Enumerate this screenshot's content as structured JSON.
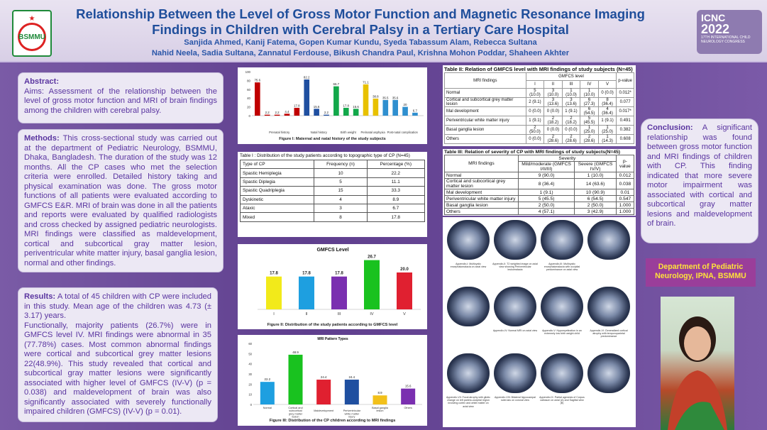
{
  "header": {
    "title_line1": "Relationship Between the Level of Gross Motor Function and Magnetic Resonance Imaging",
    "title_line2": "Findings in Children with Cerebral Palsy in a Tertiary Care Hospital",
    "authors_line1": "Sanjida Ahmed, Kanij Fatema, Gopen Kumar Kundu, Syeda Tabassum Alam, Rebecca Sultana",
    "authors_line2": "Nahid Neela, Sadia Sultana, Zannatul Ferdouse, Bikush Chandra Paul, Krishna Mohon Poddar, Shaheen Akhter",
    "logo_text": "BSMMU",
    "conf_name": "ICNC",
    "conf_year": "2022",
    "conf_sub": "17TH INTERNATIONAL CHILD NEUROLOGY CONGRESS"
  },
  "abstract": {
    "heading": "Abstract:",
    "text": "Aims: Assessment of the relationship between the level of gross motor function and MRI of brain findings among the children with cerebral palsy."
  },
  "methods": {
    "heading": "Methods:",
    "text": "This cross-sectional study was carried out at the department of Pediatric Neurology, BSMMU, Dhaka, Bangladesh. The duration of the study was 12 months. All the CP cases who met the selection criteria were enrolled. Detailed history taking and physical examination was done. The gross motor functions of all patients were evaluated according to GMFCS E&R. MRI of brain was done in all the patients and reports were evaluated by qualified radiologists and cross checked by assigned pediatric neurologists. MRI findings were classified as maldevelopment, cortical and subcortical gray matter lesion, periventricular white matter injury, basal ganglia lesion, normal and other findings."
  },
  "results": {
    "heading": "Results:",
    "p1": "A total of 45 children with CP were included in this study. Mean age of the children was 4.73 (± 3.17) years.",
    "p2": "Functionally, majority patients (26.7%) were in GMFCS level IV. MRI findings were abnormal in 35 (77.78%) cases. Most common abnormal findings were cortical and subcortical grey matter lesions 22(48.9%). This study revealed that cortical and subcortical gray matter lesions were significantly associated with higher level of GMFCS (IV-V) (p = 0.038) and maldevelopment of brain was also significantly associated with severely functionally impaired children (GMFCS) (IV-V) (p = 0.01)."
  },
  "conclusion": {
    "heading": "Conclusion:",
    "text": "A significant relationship was found between gross motor function and MRI findings of children with CP. This finding indicated that more severe motor impairment was associated with cortical and subcortical gray matter lesions and maldevelopment of brain."
  },
  "department": "Department of Pediatric Neurology, IPNA, BSMMU",
  "colors": {
    "bg": "#6d4d95",
    "text": "#5a35a0",
    "title": "#1f4e9b",
    "dept_bg": "#9a3e9a",
    "dept_fg": "#ffe23a"
  },
  "chart_data": [
    {
      "type": "bar",
      "caption": "Figure I: Maternal and natal history of the study subjects",
      "ylim": [
        0,
        100
      ],
      "yticks": [
        "100",
        "80",
        "60",
        "40",
        "20",
        "0"
      ],
      "values": [
        75.6,
        2.2,
        2.2,
        4.4,
        17.8,
        82.2,
        15.6,
        2.2,
        66.7,
        17.8,
        15.6,
        71.1,
        38.8,
        35.5,
        35.6,
        20,
        6.7
      ],
      "colors": [
        "#c00000",
        "#c00000",
        "#c00000",
        "#c00000",
        "#c00000",
        "#1f4fa0",
        "#1f4fa0",
        "#1f4fa0",
        "#12a84a",
        "#12a84a",
        "#12a84a",
        "#e8c100",
        "#e8c100",
        "#2f8fcf",
        "#2f8fcf",
        "#2f8fcf",
        "#2f8fcf"
      ],
      "value_labels": [
        "75.6",
        "2.2",
        "2.2",
        "4.4",
        "17.8",
        "82.2",
        "15.6",
        "2.2",
        "66.7",
        "17.8",
        "15.6",
        "71.1",
        "38.8",
        "35.5",
        "35.6",
        "20",
        "6.7"
      ],
      "groups": [
        "Prenatal history",
        "Natal history",
        "Birth weight",
        "Perinatal asphyxia",
        "Post-natal complication"
      ]
    },
    {
      "type": "bar",
      "title": "GMFCS Level",
      "caption": "Figure II: Distribution of the study patients according to GMFCS level",
      "categories": [
        "I",
        "II",
        "III",
        "IV",
        "V"
      ],
      "values": [
        17.8,
        17.8,
        17.8,
        26.7,
        20.0
      ],
      "value_labels": [
        "17.8",
        "17.8",
        "17.8",
        "26.7",
        "20.0"
      ],
      "colors": [
        "#f2ea1a",
        "#1e9fe0",
        "#7a2fb0",
        "#19c21f",
        "#e02030"
      ],
      "ylim": [
        0,
        30
      ]
    },
    {
      "type": "bar",
      "title": "MRI Pattern Types",
      "caption": "Figure III: Distribution of the CP children according to MRI findings",
      "categories": [
        "Normal",
        "Cortical and subcortical grey matter lesion",
        "Maldevelopment",
        "Periventricular white matter injury",
        "Basal ganglia lesion",
        "Others"
      ],
      "values": [
        22.2,
        48.9,
        24.4,
        24.4,
        8.9,
        15.6
      ],
      "value_labels": [
        "22.2",
        "48.9",
        "24.4",
        "24.4",
        "8.9",
        "15.6"
      ],
      "colors": [
        "#1e9fe0",
        "#19c21f",
        "#e02030",
        "#1f4fa0",
        "#f2c01a",
        "#7a2fb0"
      ],
      "yticks": [
        "60",
        "50",
        "40",
        "30",
        "20",
        "10",
        "0"
      ],
      "ylim": [
        0,
        60
      ]
    }
  ],
  "table1": {
    "title": "Table I : Distribution of the study patients according to topographic type of CP (N=45)",
    "headers": [
      "Type of CP",
      "Frequency (n)",
      "Percentage (%)"
    ],
    "rows": [
      [
        "Spastic Hemiplegia",
        "10",
        "22.2"
      ],
      [
        "Spastic Diplegia",
        "5",
        "11.1"
      ],
      [
        "Spastic Quadriplegia",
        "15",
        "33.3"
      ],
      [
        "Dyskinetic",
        "4",
        "8.9"
      ],
      [
        "Ataxic",
        "3",
        "6.7"
      ],
      [
        "Mixed",
        "8",
        "17.8"
      ]
    ]
  },
  "table2": {
    "title": "Table II: Relation of GMFCS level with MRI findings of study subjects (N=45)",
    "h1": "MRI findings",
    "h2": "GMFCS level",
    "h3": "p-value",
    "levels": [
      "I",
      "II",
      "III",
      "IV",
      "V"
    ],
    "rows": [
      [
        "Normal",
        "5 (10.0)",
        "3 (10.0)",
        "1 (10.0)",
        "1 (10.0)",
        "0 (0.0)",
        "0.012*"
      ],
      [
        "Cortical and subcortical grey matter lesion",
        "2 (9.1)",
        "3 (13.6)",
        "3 (13.6)",
        "6 (27.3)",
        "8 (36.4)",
        "0.077"
      ],
      [
        "Mal development",
        "0 (0.0)",
        "0 (0.0)",
        "1 (9.1)",
        "6 (54.5)",
        "4 (36.4)",
        "0.017*"
      ],
      [
        "Periventricular white matter injury",
        "1 (9.1)",
        "2 (18.2)",
        "2 (18.2)",
        "5 (45.5)",
        "1 (9.1)",
        "0.491"
      ],
      [
        "Basal ganglia lesion",
        "2 (50.0)",
        "0 (0.0)",
        "0 (0.0)",
        "1 (25.0)",
        "1 (25.0)",
        "0.382"
      ],
      [
        "Others",
        "0 (0.0)",
        "2 (28.6)",
        "2 (28.6)",
        "2 (28.6)",
        "1 (14.3)",
        "0.608"
      ]
    ]
  },
  "table3": {
    "title": "Table III: Relation of severity of CP with MRI findings of study subjects(N=45)",
    "h1": "MRI findings",
    "h2": "Severity",
    "h3": "p-value",
    "sub1": "Mild/moderate (GMFCS I/II/III)",
    "sub2": "Severe (GMFCS IV/V)",
    "rows": [
      [
        "Normal",
        "9 (90.0)",
        "1 (10.0)",
        "0.012"
      ],
      [
        "Cortical and subcortical grey matter lesion",
        "8 (36.4)",
        "14 (63.6)",
        "0.038"
      ],
      [
        "Mal development",
        "1 (9.1)",
        "10 (90.9)",
        "0.01"
      ],
      [
        "Periventricular white matter injury",
        "5 (45.5)",
        "6 (54.5)",
        "0.547"
      ],
      [
        "Basal ganglia lesion",
        "2 (50.0)",
        "2 (50.0)",
        "1.000"
      ],
      [
        "Others",
        "4 (57.1)",
        "3 (42.9)",
        "1.000"
      ]
    ]
  },
  "mri_captions": [
    "Appendix-I: Multicystic encephalomalacia on axial view",
    "Appendix-II: T2 weighted image on axial view showing Periventricular leukomalacia",
    "Appendix-III: Multicystic encephalomalacia with occipital predominance on axial view",
    "",
    "",
    "Appendix-IV: Normal MRI on axial view",
    "Appendix-V: Hypomyelination in an extremely low birth weight child",
    "Appendix-VI: Generalized cortical atrophy with temporoparietal predominance",
    "Appendix-VII: Focal atrophy with gliotic change on left parieto-occipital region involving cortex and white matter on axial view",
    "Appendix-VIII: Bilateral hippocampal sclerosis on coronal view",
    "Appendix-IX: Partial agenesis of Corpus callosum on axial (A) and Sagittal view (B)"
  ]
}
